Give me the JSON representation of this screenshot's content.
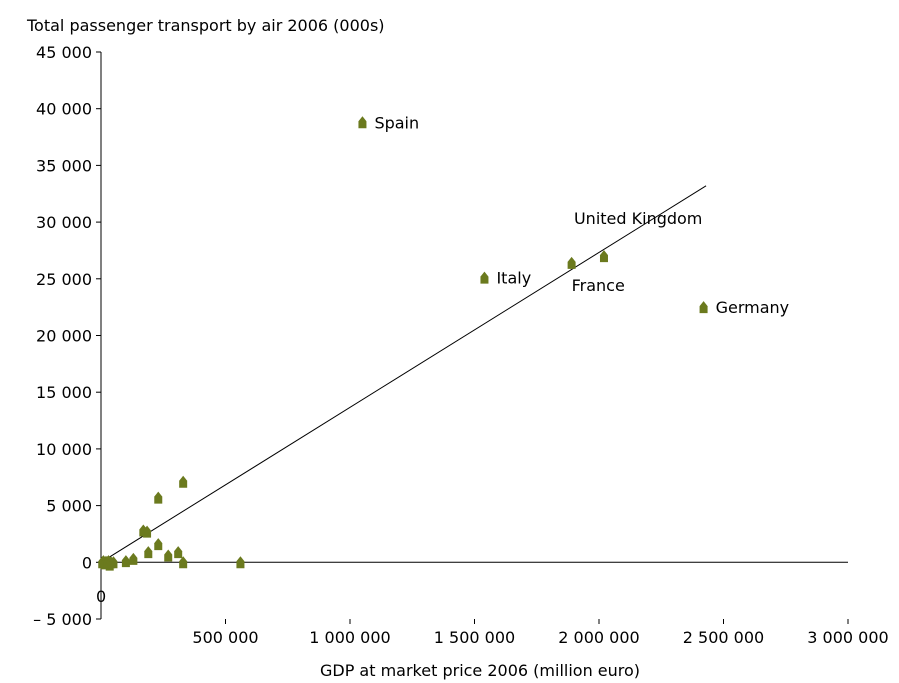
{
  "chart_data": {
    "type": "scatter",
    "title": "Total passenger transport by air 2006 (000s)",
    "xlabel": "GDP at market price 2006 (million euro)",
    "ylabel": "Total passenger transport by air 2006 (000s)",
    "xlim": [
      0,
      3000000
    ],
    "ylim": [
      -5000,
      45000
    ],
    "x_ticks": [
      500000,
      1000000,
      1500000,
      2000000,
      2500000,
      3000000
    ],
    "x_tick_labels": [
      "500 000",
      "1 000 000",
      "1 500 000",
      "2 000 000",
      "2 500 000",
      "3 000 000"
    ],
    "y_ticks": [
      -5000,
      0,
      5000,
      10000,
      15000,
      20000,
      25000,
      30000,
      35000,
      40000,
      45000
    ],
    "y_tick_labels": [
      "– 5 000",
      "0",
      "5 000",
      "10 000",
      "15 000",
      "20 000",
      "25 000",
      "30 000",
      "35 000",
      "40 000",
      "45 000"
    ],
    "origin_label": "0",
    "marker_color": "#6b7a1e",
    "trendline": {
      "x": [
        0,
        2430000
      ],
      "y": [
        0,
        33200
      ]
    },
    "points": [
      {
        "x": 5000,
        "y": 0,
        "label": ""
      },
      {
        "x": 10000,
        "y": 100,
        "label": ""
      },
      {
        "x": 15000,
        "y": -100,
        "label": ""
      },
      {
        "x": 20000,
        "y": 50,
        "label": ""
      },
      {
        "x": 25000,
        "y": 0,
        "label": ""
      },
      {
        "x": 30000,
        "y": 100,
        "label": ""
      },
      {
        "x": 35000,
        "y": -200,
        "label": ""
      },
      {
        "x": 40000,
        "y": 0,
        "label": ""
      },
      {
        "x": 50000,
        "y": 0,
        "label": ""
      },
      {
        "x": 100000,
        "y": 100,
        "label": ""
      },
      {
        "x": 130000,
        "y": 300,
        "label": ""
      },
      {
        "x": 170000,
        "y": 2800,
        "label": ""
      },
      {
        "x": 185000,
        "y": 2700,
        "label": ""
      },
      {
        "x": 190000,
        "y": 900,
        "label": ""
      },
      {
        "x": 230000,
        "y": 5700,
        "label": ""
      },
      {
        "x": 230000,
        "y": 1600,
        "label": ""
      },
      {
        "x": 270000,
        "y": 600,
        "label": ""
      },
      {
        "x": 310000,
        "y": 900,
        "label": ""
      },
      {
        "x": 330000,
        "y": 7100,
        "label": ""
      },
      {
        "x": 330000,
        "y": 0,
        "label": ""
      },
      {
        "x": 560000,
        "y": 0,
        "label": ""
      },
      {
        "x": 1050000,
        "y": 38800,
        "label": "Spain"
      },
      {
        "x": 1540000,
        "y": 25100,
        "label": "Italy"
      },
      {
        "x": 1890000,
        "y": 26400,
        "label": "France"
      },
      {
        "x": 2020000,
        "y": 27000,
        "label": "United Kingdom"
      },
      {
        "x": 2420000,
        "y": 22500,
        "label": "Germany"
      }
    ]
  }
}
